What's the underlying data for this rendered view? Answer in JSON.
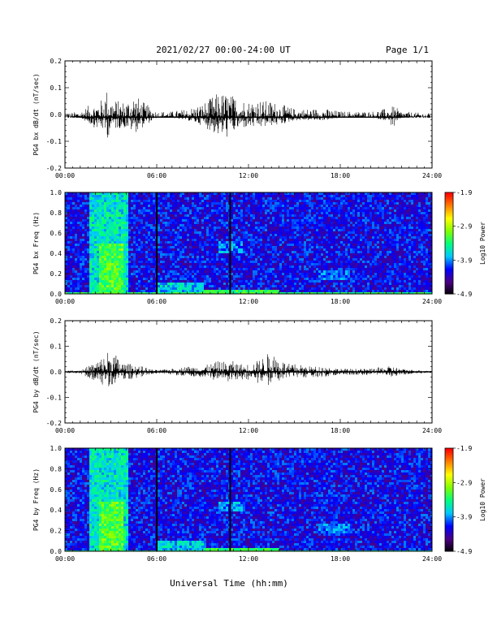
{
  "header": {
    "date_range": "2021/02/27  00:00-24:00 UT",
    "page": "Page 1/1"
  },
  "x_axis": {
    "label": "Universal Time (hh:mm)",
    "ticks": [
      "00:00",
      "06:00",
      "12:00",
      "18:00",
      "24:00"
    ],
    "range_hours": [
      0,
      24
    ]
  },
  "colors": {
    "trace": "#000000",
    "frame": "#000000",
    "spectrogram_background": "#2a0a6e",
    "colormap": [
      "#000000",
      "#4b0082",
      "#0000ff",
      "#00c8ff",
      "#00ff7f",
      "#7fff00",
      "#ffff00",
      "#ff8000",
      "#ff0000"
    ]
  },
  "chart_data": [
    {
      "type": "line",
      "ylabel": "PG4 bx dB/dt (nT/sec)",
      "ylim": [
        -0.2,
        0.2
      ],
      "yticks": [
        "0.2",
        "0.1",
        "0.0",
        "-0.1",
        "-0.2"
      ],
      "x_hours": [
        0,
        1,
        1.5,
        2,
        2.5,
        2.7,
        3,
        3.5,
        4,
        4.5,
        5,
        5.5,
        6,
        7,
        8,
        8.5,
        9,
        9.5,
        10,
        10.5,
        11,
        11.5,
        12,
        12.5,
        13,
        13.5,
        14,
        14.5,
        15,
        16,
        16.5,
        17,
        18,
        19,
        20,
        21,
        21.5,
        22,
        23,
        24
      ],
      "envelope_max": [
        0.002,
        0.01,
        0.03,
        0.04,
        0.06,
        0.1,
        0.06,
        0.05,
        0.05,
        0.08,
        0.05,
        0.03,
        0.01,
        0.01,
        0.02,
        0.03,
        0.04,
        0.06,
        0.08,
        0.08,
        0.07,
        0.06,
        0.05,
        0.06,
        0.05,
        0.05,
        0.04,
        0.03,
        0.02,
        0.02,
        0.02,
        0.02,
        0.01,
        0.01,
        0.01,
        0.02,
        0.03,
        0.01,
        0.005,
        0.002
      ],
      "envelope_min": [
        -0.002,
        -0.01,
        -0.03,
        -0.05,
        -0.06,
        -0.1,
        -0.06,
        -0.05,
        -0.05,
        -0.07,
        -0.05,
        -0.03,
        -0.01,
        -0.01,
        -0.02,
        -0.03,
        -0.04,
        -0.06,
        -0.08,
        -0.09,
        -0.07,
        -0.05,
        -0.05,
        -0.05,
        -0.05,
        -0.04,
        -0.04,
        -0.03,
        -0.02,
        -0.02,
        -0.02,
        -0.02,
        -0.01,
        -0.01,
        -0.01,
        -0.02,
        -0.05,
        -0.01,
        -0.005,
        -0.002
      ],
      "baseline": -0.01
    },
    {
      "type": "heatmap",
      "ylabel": "PG4 bx Freq (Hz)",
      "ylim": [
        0,
        1
      ],
      "yticks": [
        "1.0",
        "0.8",
        "0.6",
        "0.4",
        "0.2",
        "0.0"
      ],
      "colorbar_label": "Log10 Power",
      "colorbar_ticks": [
        "-1.9",
        "-2.9",
        "-3.9",
        "-4.9"
      ],
      "clim": [
        -4.9,
        -1.9
      ],
      "vertical_lines_hours": [
        6.0,
        10.8
      ],
      "features": [
        {
          "hours": [
            1.5,
            4.0
          ],
          "freq": [
            0,
            1.0
          ],
          "level": -3.3
        },
        {
          "hours": [
            2.2,
            3.7
          ],
          "freq": [
            0,
            0.5
          ],
          "level": -2.9
        },
        {
          "hours": [
            6.0,
            9.0
          ],
          "freq": [
            0,
            0.12
          ],
          "level": -3.4
        },
        {
          "hours": [
            9.0,
            14.0
          ],
          "freq": [
            0,
            0.05
          ],
          "level": -3.0
        },
        {
          "hours": [
            10.0,
            11.5
          ],
          "freq": [
            0.42,
            0.52
          ],
          "level": -3.6
        },
        {
          "hours": [
            16.5,
            18.5
          ],
          "freq": [
            0.15,
            0.25
          ],
          "level": -3.7
        }
      ]
    },
    {
      "type": "line",
      "ylabel": "PG4 by dB/dt (nT/sec)",
      "ylim": [
        -0.2,
        0.2
      ],
      "yticks": [
        "0.2",
        "0.1",
        "0.0",
        "-0.1",
        "-0.2"
      ],
      "x_hours": [
        0,
        1,
        1.5,
        2,
        2.5,
        3,
        3.5,
        4,
        4.5,
        5,
        5.5,
        6,
        7,
        8,
        8.5,
        9,
        9.5,
        10,
        10.5,
        11,
        11.5,
        12,
        12.5,
        13,
        13.5,
        14,
        14.5,
        15,
        16,
        16.5,
        17,
        18,
        19,
        20,
        21,
        21.5,
        22,
        23,
        24
      ],
      "envelope_max": [
        0.002,
        0.005,
        0.02,
        0.04,
        0.06,
        0.1,
        0.05,
        0.03,
        0.03,
        0.02,
        0.01,
        0.005,
        0.01,
        0.02,
        0.02,
        0.02,
        0.03,
        0.04,
        0.04,
        0.04,
        0.03,
        0.03,
        0.04,
        0.06,
        0.08,
        0.06,
        0.03,
        0.03,
        0.02,
        0.02,
        0.02,
        0.01,
        0.01,
        0.01,
        0.02,
        0.02,
        0.01,
        0.005,
        0.002
      ],
      "envelope_min": [
        -0.002,
        -0.005,
        -0.02,
        -0.04,
        -0.05,
        -0.06,
        -0.04,
        -0.03,
        -0.03,
        -0.02,
        -0.01,
        -0.005,
        -0.01,
        -0.02,
        -0.02,
        -0.02,
        -0.03,
        -0.03,
        -0.04,
        -0.03,
        -0.03,
        -0.03,
        -0.04,
        -0.05,
        -0.05,
        -0.04,
        -0.03,
        -0.02,
        -0.02,
        -0.02,
        -0.02,
        -0.01,
        -0.01,
        -0.01,
        -0.01,
        -0.02,
        -0.01,
        -0.005,
        -0.002
      ],
      "baseline": 0.0
    },
    {
      "type": "heatmap",
      "ylabel": "PG4 by Freq (Hz)",
      "ylim": [
        0,
        1
      ],
      "yticks": [
        "1.0",
        "0.8",
        "0.6",
        "0.4",
        "0.2",
        "0.0"
      ],
      "colorbar_label": "Log10 Power",
      "colorbar_ticks": [
        "-1.9",
        "-2.9",
        "-3.9",
        "-4.9"
      ],
      "clim": [
        -4.9,
        -1.9
      ],
      "vertical_lines_hours": [
        6.0,
        10.8
      ],
      "features": [
        {
          "hours": [
            1.5,
            4.0
          ],
          "freq": [
            0,
            1.0
          ],
          "level": -3.3
        },
        {
          "hours": [
            2.2,
            3.7
          ],
          "freq": [
            0,
            0.5
          ],
          "level": -2.9
        },
        {
          "hours": [
            6.0,
            9.0
          ],
          "freq": [
            0,
            0.12
          ],
          "level": -3.4
        },
        {
          "hours": [
            9.0,
            14.0
          ],
          "freq": [
            0,
            0.05
          ],
          "level": -3.0
        },
        {
          "hours": [
            10.0,
            11.5
          ],
          "freq": [
            0.4,
            0.5
          ],
          "level": -3.6
        },
        {
          "hours": [
            16.5,
            18.5
          ],
          "freq": [
            0.18,
            0.28
          ],
          "level": -3.7
        }
      ]
    }
  ]
}
